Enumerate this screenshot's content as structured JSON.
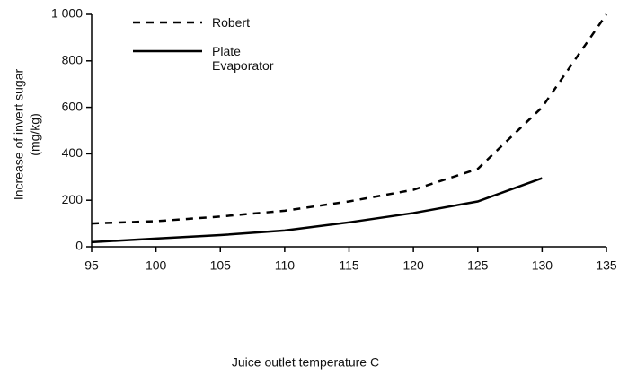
{
  "chart_data": {
    "type": "line",
    "xlabel": "Juice outlet temperature C",
    "ylabel": [
      "Increase of invert sugar",
      "(mg/kg)"
    ],
    "x": [
      95,
      100,
      105,
      110,
      115,
      120,
      125,
      130,
      135
    ],
    "series": [
      {
        "name": "Robert",
        "color": "#000000",
        "style": "dashed",
        "values": [
          100,
          110,
          130,
          155,
          195,
          245,
          335,
          600,
          1000
        ]
      },
      {
        "name": "Plate Evaporator",
        "color": "#000000",
        "style": "solid",
        "values": [
          20,
          35,
          50,
          70,
          105,
          145,
          195,
          295,
          null
        ]
      }
    ],
    "xlim": [
      95,
      135
    ],
    "xticks": [
      95,
      100,
      105,
      110,
      115,
      120,
      125,
      130,
      135
    ],
    "ylim": [
      0,
      1000
    ],
    "yticks": [
      0,
      200,
      400,
      600,
      800,
      {
        "value": 1000,
        "label": "1 000"
      }
    ],
    "grid": false,
    "legend": "top-left"
  }
}
